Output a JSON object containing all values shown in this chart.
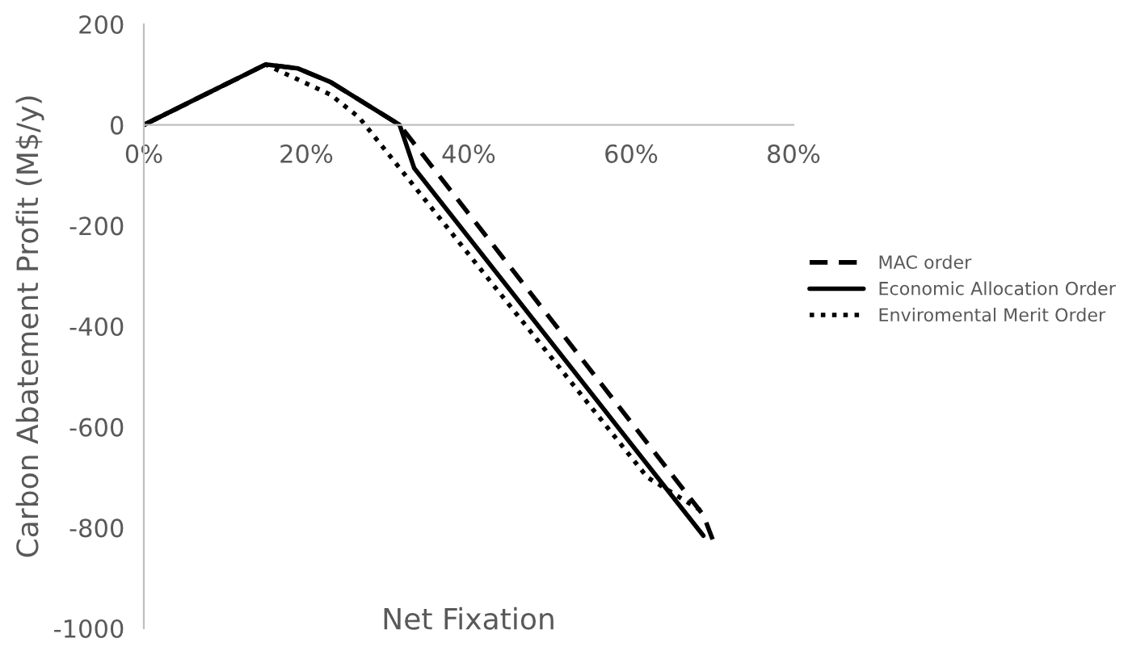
{
  "chart_data": {
    "type": "line",
    "xlabel": "Net Fixation",
    "ylabel": "Carbon Abatement Profit (M$/y)",
    "xlim": [
      0,
      80
    ],
    "ylim": [
      -1000,
      200
    ],
    "xticks": [
      {
        "value": 0,
        "label": "0%"
      },
      {
        "value": 20,
        "label": "20%"
      },
      {
        "value": 40,
        "label": "40%"
      },
      {
        "value": 60,
        "label": "60%"
      },
      {
        "value": 80,
        "label": "80%"
      }
    ],
    "yticks": [
      -1000,
      -800,
      -600,
      -400,
      -200,
      0,
      200
    ],
    "grid": false,
    "legend": "right",
    "marker": "none",
    "series": [
      {
        "name": "MAC order",
        "color": "#000000",
        "line_style": "dashed",
        "x": [
          0,
          15,
          19,
          23,
          31.5,
          68.9,
          70.2
        ],
        "values": [
          0,
          120,
          112,
          85,
          0,
          -775,
          -830
        ]
      },
      {
        "name": "Economic Allocation Order",
        "color": "#000000",
        "line_style": "solid",
        "x": [
          0,
          15,
          19,
          23,
          31.5,
          33.3,
          68.9
        ],
        "values": [
          0,
          120,
          112,
          85,
          0,
          -86,
          -816
        ]
      },
      {
        "name": "Enviromental Merit Order",
        "color": "#000000",
        "line_style": "dotted",
        "x": [
          0,
          15,
          23,
          26.5,
          62,
          69
        ],
        "values": [
          0,
          120,
          60,
          15,
          -700,
          -770
        ]
      }
    ]
  }
}
